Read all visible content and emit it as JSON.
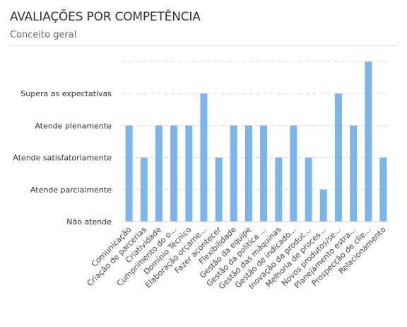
{
  "header": {
    "title": "AVALIAÇÕES POR COMPETÊNCIA",
    "subtitle": "Conceito geral"
  },
  "chart_data": {
    "type": "bar",
    "title": "AVALIAÇÕES POR COMPETÊNCIA",
    "subtitle": "Conceito geral",
    "y_tick_labels": [
      "Não atende",
      "Atende parcialmente",
      "Atende satisfatoriamente",
      "Atende plenamente",
      "Supera as expectativas"
    ],
    "ylim": [
      0,
      5
    ],
    "categories": [
      "Comunicação",
      "Criação de parcerias",
      "Criatividade",
      "Cumprimento do o...",
      "Domínio Técnico",
      "Elaboração orçame...",
      "Fazer acontecer",
      "Flexibilidade",
      "Gestão da equipe",
      "Gestão da política ...",
      "Gestão das máquinas",
      "Gestão de indicado...",
      "Inovação da produc...",
      "Melhoria de proces...",
      "Novos produtos/se...",
      "Planejamento estra...",
      "Prospecção de clie...",
      "Relacionamento"
    ],
    "values": [
      3,
      2,
      3,
      3,
      3,
      4,
      2,
      3,
      3,
      3,
      2,
      3,
      2,
      1,
      4,
      3,
      5,
      2
    ],
    "bar_color": "#7cb5ec",
    "grid": true,
    "gridline_color": "#d8d8d8"
  }
}
